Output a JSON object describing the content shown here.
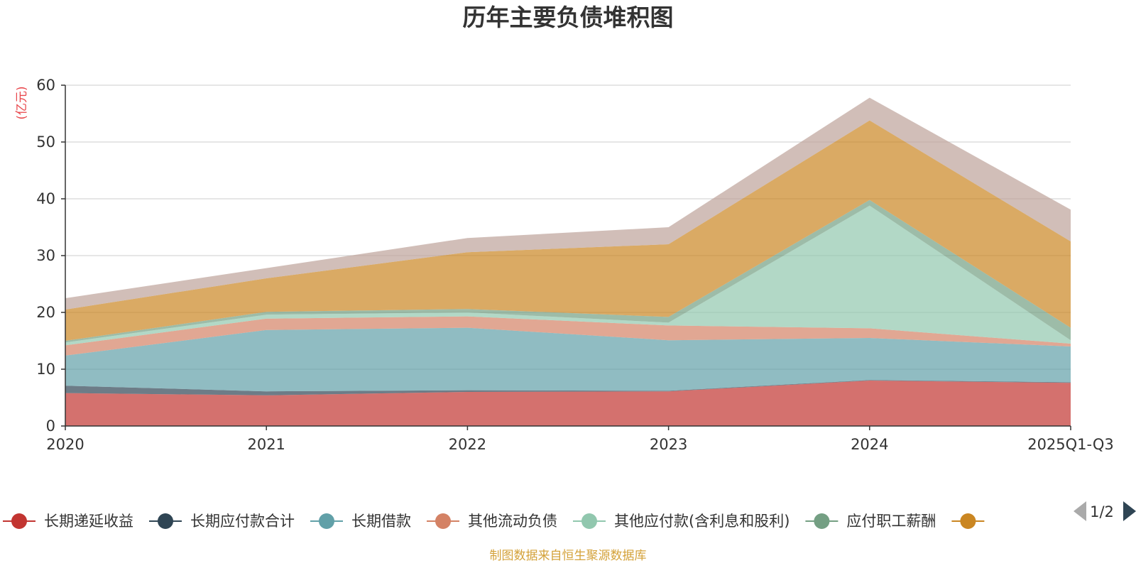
{
  "chart_data": {
    "type": "area",
    "stacked": true,
    "title": "历年主要负债堆积图",
    "ylabel": "(亿元)",
    "ylim": [
      0,
      60
    ],
    "yticks": [
      0,
      10,
      20,
      30,
      40,
      50,
      60
    ],
    "grid": true,
    "x": [
      "2020",
      "2021",
      "2022",
      "2023",
      "2024",
      "2025Q1-Q3"
    ],
    "series": [
      {
        "name": "长期递延收益",
        "color": "#c23531",
        "values": [
          5.8,
          5.4,
          6.0,
          6.1,
          8.0,
          7.6
        ]
      },
      {
        "name": "长期应付款合计",
        "color": "#2f4554",
        "values": [
          1.3,
          0.7,
          0.3,
          0.1,
          0.1,
          0.1
        ]
      },
      {
        "name": "长期借款",
        "color": "#61a0a8",
        "values": [
          5.3,
          10.8,
          11.0,
          8.9,
          7.4,
          6.3
        ]
      },
      {
        "name": "其他流动负债",
        "color": "#d48265",
        "values": [
          1.8,
          2.0,
          2.0,
          2.6,
          1.7,
          0.5
        ]
      },
      {
        "name": "其他应付款(含利息和股利)",
        "color": "#91c7ae",
        "values": [
          0.5,
          0.7,
          0.7,
          0.5,
          21.6,
          0.6
        ]
      },
      {
        "name": "应付职工薪酬",
        "color": "#749f83",
        "values": [
          0.3,
          0.5,
          0.6,
          1.0,
          1.0,
          2.2
        ]
      },
      {
        "name": "",
        "color": "#ca8622",
        "values": [
          5.5,
          5.9,
          10.0,
          12.8,
          14.0,
          15.2
        ]
      },
      {
        "name": "",
        "color": "#bda29a",
        "values": [
          2.0,
          1.8,
          2.5,
          3.0,
          4.0,
          5.6
        ]
      }
    ],
    "legend": {
      "position": "bottom",
      "visible": [
        "长期递延收益",
        "长期应付款合计",
        "长期借款",
        "其他流动负债",
        "其他应付款(含利息和股利)",
        "应付职工薪酬"
      ],
      "page": "1/2"
    },
    "source": "制图数据来自恒生聚源数据库"
  }
}
